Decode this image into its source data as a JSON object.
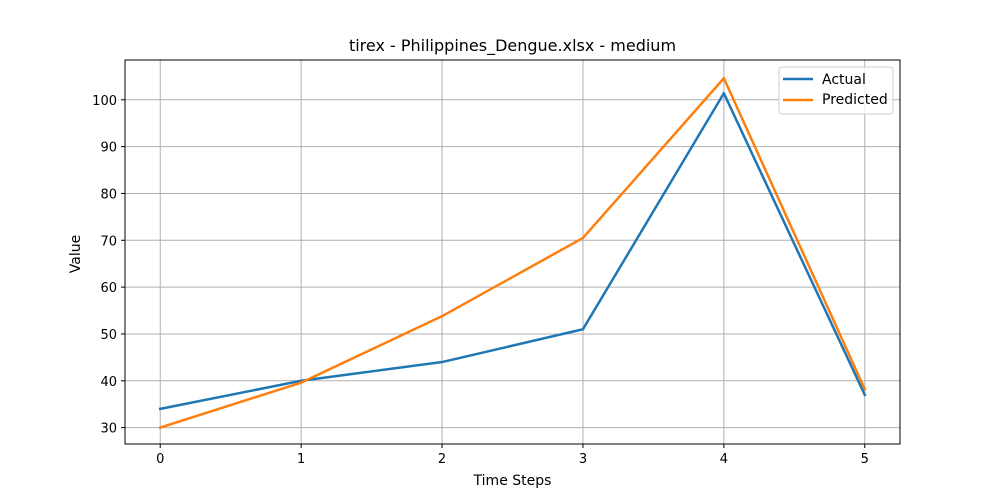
{
  "chart_data": {
    "type": "line",
    "title": "tirex - Philippines_Dengue.xlsx - medium",
    "xlabel": "Time Steps",
    "ylabel": "Value",
    "x": [
      0,
      1,
      2,
      3,
      4,
      5
    ],
    "xlim": [
      -0.25,
      5.25
    ],
    "ylim": [
      26.5,
      108.5
    ],
    "x_ticks": [
      0,
      1,
      2,
      3,
      4,
      5
    ],
    "y_ticks": [
      30,
      40,
      50,
      60,
      70,
      80,
      90,
      100
    ],
    "grid": true,
    "legend_position": "top-right",
    "series": [
      {
        "name": "Actual",
        "color": "#1f77b4",
        "values": [
          34,
          40,
          44,
          51,
          101.4,
          37
        ]
      },
      {
        "name": "Predicted",
        "color": "#ff7f0e",
        "values": [
          30,
          39.6,
          53.8,
          70.5,
          104.6,
          38.2
        ]
      }
    ]
  }
}
